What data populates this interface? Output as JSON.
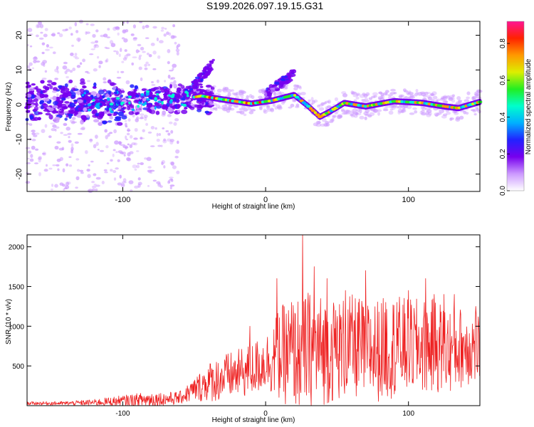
{
  "figure": {
    "title": "S199.2026.097.19.15.G31"
  },
  "chart_data": [
    {
      "type": "heatmap",
      "name": "spectrogram",
      "title": "S199.2026.097.19.15.G31",
      "xlabel": "Height of straight line (km)",
      "ylabel": "Frequency (Hz)",
      "xlim": [
        -167,
        150
      ],
      "ylim": [
        -25,
        24
      ],
      "xticks": [
        -100,
        0,
        100
      ],
      "xtick_labels": [
        "-100",
        "0",
        "100"
      ],
      "yticks": [
        -20,
        -10,
        0,
        10,
        20
      ],
      "ytick_labels": [
        "-20",
        "-10",
        "0",
        "10",
        "20"
      ],
      "ridge": {
        "description_points_x": [
          -167,
          -120,
          -80,
          -60,
          -45,
          -30,
          -10,
          5,
          20,
          30,
          38,
          45,
          55,
          70,
          90,
          110,
          125,
          135,
          150
        ],
        "description_points_y": [
          0.5,
          0.5,
          1,
          1.5,
          2.5,
          1.5,
          0.3,
          1.2,
          2.8,
          -0.5,
          -3.5,
          -2,
          0.5,
          -0.5,
          1,
          0.5,
          -0.5,
          -1,
          0.8
        ]
      },
      "colorbar": {
        "label": "Normalized spectral amplitude",
        "range": [
          0,
          0.92
        ],
        "ticks": [
          0.0,
          0.2,
          0.4,
          0.6,
          0.8
        ],
        "tick_labels": [
          "0.0",
          "0.2",
          "0.4",
          "0.6",
          "0.8"
        ],
        "colormap": [
          "#ffffff",
          "#cc99ff",
          "#7700ee",
          "#2222ff",
          "#00b0ff",
          "#00ffcc",
          "#22ee22",
          "#ddee00",
          "#ff9900",
          "#ff2200",
          "#ff1493"
        ]
      }
    },
    {
      "type": "line",
      "name": "snr",
      "xlabel": "Height of straight line (km)",
      "ylabel": "SNR (10 * v/v)",
      "xlim": [
        -167,
        150
      ],
      "ylim": [
        0,
        2150
      ],
      "xticks": [
        -100,
        0,
        100
      ],
      "xtick_labels": [
        "-100",
        "0",
        "100"
      ],
      "yticks": [
        500,
        1000,
        1500,
        2000
      ],
      "ytick_labels": [
        "500",
        "1000",
        "1500",
        "2000"
      ],
      "line_color": "#ee2020",
      "envelope": {
        "x": [
          -167,
          -140,
          -120,
          -100,
          -80,
          -70,
          -60,
          -50,
          -40,
          -30,
          -20,
          -10,
          0,
          10,
          20,
          30,
          40,
          50,
          60,
          70,
          80,
          90,
          100,
          110,
          120,
          130,
          140,
          150
        ],
        "base": [
          30,
          30,
          40,
          60,
          80,
          80,
          100,
          200,
          300,
          350,
          400,
          450,
          550,
          650,
          650,
          700,
          700,
          700,
          750,
          700,
          700,
          750,
          750,
          750,
          750,
          700,
          750,
          750
        ],
        "amp": [
          20,
          25,
          40,
          70,
          100,
          90,
          80,
          150,
          250,
          300,
          300,
          350,
          350,
          600,
          700,
          750,
          700,
          650,
          650,
          650,
          650,
          650,
          600,
          600,
          600,
          550,
          500,
          500
        ]
      },
      "spikes": [
        {
          "x": -67,
          "y": 120
        },
        {
          "x": -11,
          "y": 1000
        },
        {
          "x": 8,
          "y": 1600
        },
        {
          "x": 18,
          "y": 1300
        },
        {
          "x": 26,
          "y": 2150
        },
        {
          "x": 34,
          "y": 1750
        },
        {
          "x": 43,
          "y": 1600
        },
        {
          "x": 49,
          "y": 1200
        },
        {
          "x": 56,
          "y": 1450
        },
        {
          "x": 65,
          "y": 1300
        },
        {
          "x": 70,
          "y": 1700
        },
        {
          "x": 84,
          "y": 1300
        },
        {
          "x": 92,
          "y": 1300
        },
        {
          "x": 100,
          "y": 1450
        },
        {
          "x": 112,
          "y": 1600
        },
        {
          "x": 118,
          "y": 1400
        },
        {
          "x": 125,
          "y": 1400
        },
        {
          "x": 132,
          "y": 1400
        },
        {
          "x": 147,
          "y": 1250
        }
      ]
    }
  ]
}
